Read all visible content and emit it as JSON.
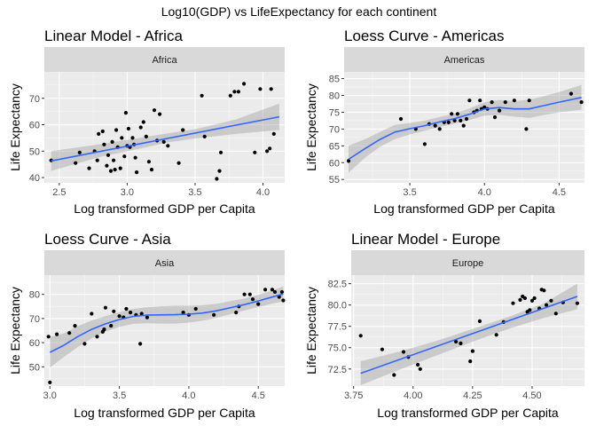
{
  "figure": {
    "title": "Log10(GDP) vs LifeExpectancy for each continent"
  },
  "chart_data": [
    {
      "type": "scatter",
      "title": "Linear Model - Africa",
      "facet": "Africa",
      "xlabel": "Log transformed GDP per Capita",
      "ylabel": "Life Expectancy",
      "xlim": [
        2.39,
        4.16
      ],
      "ylim": [
        38,
        80
      ],
      "xticks": [
        2.5,
        3.0,
        3.5,
        4.0
      ],
      "xtick_labels": [
        "2.5",
        "3.0",
        "3.5",
        "4.0"
      ],
      "yticks": [
        40,
        50,
        60,
        70
      ],
      "ytick_labels": [
        "40",
        "50",
        "60",
        "70"
      ],
      "grid": true,
      "fit": {
        "method": "linear",
        "color": "#3366ff",
        "band": "confidence"
      },
      "x": [
        2.44,
        2.62,
        2.65,
        2.72,
        2.76,
        2.78,
        2.79,
        2.82,
        2.83,
        2.85,
        2.86,
        2.88,
        2.89,
        2.9,
        2.91,
        2.92,
        2.93,
        2.95,
        2.96,
        2.98,
        2.99,
        3.0,
        3.01,
        3.02,
        3.04,
        3.05,
        3.06,
        3.07,
        3.1,
        3.12,
        3.14,
        3.16,
        3.18,
        3.2,
        3.22,
        3.24,
        3.27,
        3.3,
        3.38,
        3.41,
        3.55,
        3.57,
        3.66,
        3.68,
        3.69,
        3.76,
        3.79,
        3.82,
        3.86,
        3.94,
        3.98,
        4.03,
        4.05,
        4.06,
        4.08
      ],
      "y": [
        46.5,
        45.5,
        49.5,
        43.5,
        50,
        46.5,
        56.5,
        57.5,
        52.5,
        44.5,
        48.5,
        42.5,
        53.5,
        46.5,
        43,
        58,
        51.5,
        43.5,
        55,
        48,
        64.5,
        52,
        58.5,
        51.5,
        55,
        52.5,
        47.5,
        42,
        59,
        61,
        55.5,
        46,
        43,
        65.5,
        54,
        64,
        53.5,
        52,
        45.5,
        58,
        71,
        55.5,
        39.5,
        42.5,
        49.5,
        71,
        72.5,
        72.5,
        75.5,
        49.5,
        73.5,
        50,
        51,
        73.5,
        56.5
      ],
      "fit_line": {
        "x": [
          2.44,
          4.12
        ],
        "y": [
          46.3,
          63.0
        ]
      },
      "band": {
        "x": [
          2.44,
          2.8,
          3.1,
          3.3,
          3.5,
          3.8,
          4.12
        ],
        "lower": [
          42.5,
          47.8,
          51.0,
          53.3,
          54.8,
          56.5,
          58.0
        ],
        "upper": [
          50.0,
          52.6,
          55.1,
          56.7,
          58.3,
          62.0,
          68.0
        ]
      }
    },
    {
      "type": "scatter",
      "title": "Loess Curve - Americas",
      "facet": "Americas",
      "xlabel": "Log transformed GDP per Capita",
      "ylabel": "Life Expectancy",
      "xlim": [
        3.06,
        4.67
      ],
      "ylim": [
        54,
        87
      ],
      "xticks": [
        3.5,
        4.0,
        4.5
      ],
      "xtick_labels": [
        "3.5",
        "4.0",
        "4.5"
      ],
      "yticks": [
        55,
        60,
        65,
        70,
        75,
        80,
        85
      ],
      "ytick_labels": [
        "55",
        "60",
        "65",
        "70",
        "75",
        "80",
        "85"
      ],
      "grid": true,
      "fit": {
        "method": "loess",
        "color": "#3366ff",
        "band": "confidence"
      },
      "x": [
        3.09,
        3.44,
        3.54,
        3.6,
        3.63,
        3.67,
        3.7,
        3.73,
        3.76,
        3.78,
        3.8,
        3.82,
        3.84,
        3.86,
        3.88,
        3.9,
        3.93,
        3.95,
        3.97,
        3.98,
        4.0,
        4.02,
        4.05,
        4.07,
        4.1,
        4.14,
        4.2,
        4.28,
        4.3,
        4.58,
        4.65
      ],
      "y": [
        60.5,
        73,
        70,
        65.5,
        71.5,
        71,
        70,
        72,
        72,
        74.5,
        72.5,
        74.5,
        72.5,
        71,
        73,
        78.5,
        75,
        75.5,
        78.5,
        76,
        76.5,
        76,
        78,
        73.5,
        75.5,
        78,
        78.5,
        70,
        78.5,
        80.5,
        78
      ],
      "fit_line": {
        "x": [
          3.09,
          3.2,
          3.3,
          3.4,
          3.5,
          3.6,
          3.7,
          3.8,
          3.9,
          4.0,
          4.1,
          4.2,
          4.3,
          4.4,
          4.5,
          4.65
        ],
        "y": [
          61.0,
          64.2,
          66.9,
          69.1,
          70.1,
          71.0,
          72.1,
          73.1,
          74.4,
          76.0,
          76.4,
          76.0,
          76.0,
          77.0,
          78.0,
          79.4
        ]
      },
      "band": {
        "x": [
          3.09,
          3.2,
          3.3,
          3.4,
          3.5,
          3.6,
          3.7,
          3.8,
          3.9,
          4.0,
          4.1,
          4.2,
          4.3,
          4.4,
          4.5,
          4.65
        ],
        "lower": [
          57.0,
          61.5,
          64.7,
          67.0,
          68.4,
          69.5,
          70.6,
          71.6,
          72.7,
          74.0,
          74.2,
          73.7,
          73.3,
          74.2,
          75.0,
          75.7
        ],
        "upper": [
          65.0,
          67.0,
          69.1,
          71.2,
          71.8,
          72.5,
          73.6,
          74.6,
          76.1,
          78.0,
          78.6,
          78.3,
          78.7,
          79.8,
          81.0,
          83.1
        ]
      }
    },
    {
      "type": "scatter",
      "title": "Loess Curve - Asia",
      "facet": "Asia",
      "xlabel": "Log transformed GDP per Capita",
      "ylabel": "Life Expectancy",
      "xlim": [
        2.96,
        4.69
      ],
      "ylim": [
        42,
        88
      ],
      "xticks": [
        3.0,
        3.5,
        4.0,
        4.5
      ],
      "xtick_labels": [
        "3.0",
        "3.5",
        "4.0",
        "4.5"
      ],
      "yticks": [
        50,
        60,
        70,
        80
      ],
      "ytick_labels": [
        "50",
        "60",
        "70",
        "80"
      ],
      "grid": true,
      "fit": {
        "method": "loess",
        "color": "#3366ff",
        "band": "confidence"
      },
      "x": [
        2.99,
        3.0,
        3.05,
        3.14,
        3.18,
        3.25,
        3.3,
        3.34,
        3.38,
        3.39,
        3.4,
        3.44,
        3.46,
        3.5,
        3.53,
        3.55,
        3.58,
        3.62,
        3.65,
        3.66,
        3.7,
        3.96,
        4.0,
        4.05,
        4.18,
        4.34,
        4.36,
        4.4,
        4.44,
        4.46,
        4.5,
        4.55,
        4.6,
        4.62,
        4.65,
        4.67,
        4.68
      ],
      "y": [
        62.5,
        43.5,
        63.5,
        64,
        67,
        59.5,
        72,
        62.5,
        64.5,
        65.5,
        74.5,
        67,
        73,
        71,
        70.5,
        74,
        72.5,
        71.5,
        59.5,
        72,
        70.5,
        72.5,
        71.5,
        74,
        71.5,
        72.5,
        75,
        80,
        80,
        78,
        76,
        82,
        82,
        81,
        79,
        81,
        77.5
      ],
      "fit_line": {
        "x": [
          3.0,
          3.1,
          3.2,
          3.3,
          3.4,
          3.5,
          3.6,
          3.7,
          3.8,
          3.9,
          4.0,
          4.1,
          4.2,
          4.3,
          4.4,
          4.5,
          4.6,
          4.68
        ],
        "y": [
          56.0,
          58.9,
          62.5,
          65.5,
          67.8,
          69.6,
          70.9,
          71.4,
          71.5,
          71.6,
          71.8,
          72.3,
          73.2,
          74.5,
          75.8,
          77.3,
          78.9,
          80.2
        ]
      },
      "band": {
        "x": [
          3.0,
          3.1,
          3.2,
          3.3,
          3.4,
          3.5,
          3.6,
          3.7,
          3.8,
          3.9,
          4.0,
          4.1,
          4.2,
          4.3,
          4.4,
          4.5,
          4.6,
          4.68
        ],
        "lower": [
          49.7,
          54.0,
          58.2,
          61.8,
          64.6,
          66.6,
          67.8,
          68.1,
          67.9,
          67.9,
          68.3,
          69.1,
          70.3,
          71.8,
          73.3,
          74.8,
          76.2,
          77.1
        ],
        "upper": [
          62.3,
          63.8,
          66.8,
          69.2,
          71.0,
          72.6,
          74.0,
          74.7,
          75.1,
          75.3,
          75.3,
          75.5,
          76.1,
          77.2,
          78.3,
          79.8,
          81.6,
          83.3
        ]
      }
    },
    {
      "type": "scatter",
      "title": "Linear Model - Europe",
      "facet": "Europe",
      "xlabel": "Log transformed GDP per Capita",
      "ylabel": "Life Expectancy",
      "xlim": [
        3.74,
        4.72
      ],
      "ylim": [
        70.5,
        83.5
      ],
      "xticks": [
        3.75,
        4.0,
        4.25,
        4.5
      ],
      "xtick_labels": [
        "3.75",
        "4.00",
        "4.25",
        "4.50"
      ],
      "yticks": [
        72.5,
        75.0,
        77.5,
        80.0,
        82.5
      ],
      "ytick_labels": [
        "72.5",
        "75.0",
        "77.5",
        "80.0",
        "82.5"
      ],
      "grid": true,
      "fit": {
        "method": "linear",
        "color": "#3366ff",
        "band": "confidence"
      },
      "x": [
        3.78,
        3.87,
        3.92,
        3.96,
        3.98,
        4.02,
        4.03,
        4.18,
        4.2,
        4.24,
        4.25,
        4.28,
        4.35,
        4.38,
        4.42,
        4.45,
        4.46,
        4.47,
        4.48,
        4.49,
        4.5,
        4.51,
        4.53,
        4.54,
        4.55,
        4.56,
        4.58,
        4.6,
        4.63,
        4.69
      ],
      "y": [
        76.4,
        74.8,
        71.8,
        74.5,
        73.9,
        73.0,
        72.5,
        75.7,
        75.5,
        73.4,
        74.6,
        78.1,
        76.5,
        78.0,
        80.2,
        80.6,
        81.0,
        80.8,
        79.2,
        79.4,
        80.5,
        80.8,
        79.6,
        81.8,
        81.7,
        80.0,
        80.5,
        79.0,
        80.3,
        80.2
      ],
      "fit_line": {
        "x": [
          3.78,
          4.69
        ],
        "y": [
          72.0,
          81.0
        ]
      },
      "band": {
        "x": [
          3.78,
          3.95,
          4.1,
          4.25,
          4.4,
          4.55,
          4.69
        ],
        "lower": [
          70.6,
          72.5,
          74.1,
          75.7,
          77.2,
          78.5,
          79.5
        ],
        "upper": [
          73.4,
          74.6,
          75.8,
          77.2,
          78.6,
          80.2,
          82.5
        ]
      }
    }
  ]
}
